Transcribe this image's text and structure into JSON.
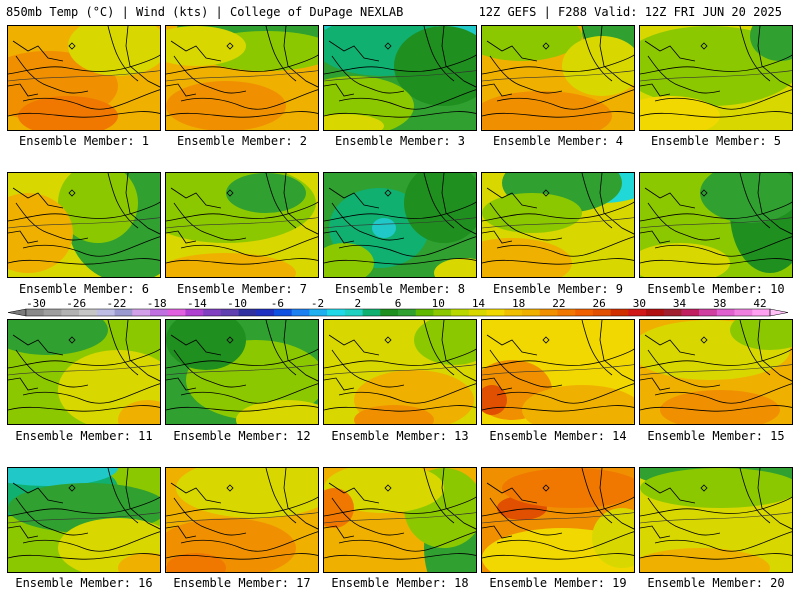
{
  "header": {
    "left": "850mb Temp (°C) | Wind (kts) | College of DuPage NEXLAB",
    "right": "12Z GEFS | F288 Valid: 12Z FRI JUN 20 2025"
  },
  "panels": [
    {
      "label": "Ensemble Member: 1",
      "bg": "#f0b000",
      "blobs": [
        [
          "#f09000",
          40,
          60,
          70,
          35
        ],
        [
          "#d8d800",
          110,
          20,
          50,
          30
        ],
        [
          "#f07800",
          60,
          90,
          50,
          20
        ]
      ]
    },
    {
      "label": "Ensemble Member: 2",
      "bg": "#f0b000",
      "blobs": [
        [
          "#30a030",
          90,
          5,
          80,
          25
        ],
        [
          "#8cc800",
          100,
          25,
          70,
          20
        ],
        [
          "#d8d800",
          30,
          20,
          50,
          20
        ],
        [
          "#f09000",
          60,
          80,
          60,
          25
        ]
      ]
    },
    {
      "label": "Ensemble Member: 3",
      "bg": "#30a030",
      "blobs": [
        [
          "#20c8c8",
          80,
          0,
          80,
          30
        ],
        [
          "#10b070",
          60,
          20,
          70,
          30
        ],
        [
          "#1f8f1f",
          120,
          40,
          50,
          40
        ],
        [
          "#8cc800",
          30,
          80,
          60,
          30
        ],
        [
          "#d8d800",
          20,
          100,
          40,
          12
        ]
      ]
    },
    {
      "label": "Ensemble Member: 4",
      "bg": "#f0b000",
      "blobs": [
        [
          "#30a030",
          140,
          5,
          40,
          30
        ],
        [
          "#8cc800",
          40,
          10,
          60,
          25
        ],
        [
          "#f09000",
          60,
          90,
          70,
          25
        ],
        [
          "#d8d800",
          120,
          40,
          40,
          30
        ]
      ]
    },
    {
      "label": "Ensemble Member: 5",
      "bg": "#d8d800",
      "blobs": [
        [
          "#8cc800",
          70,
          40,
          90,
          40
        ],
        [
          "#30a030",
          140,
          10,
          30,
          25
        ],
        [
          "#f0d800",
          30,
          90,
          50,
          20
        ]
      ]
    },
    {
      "label": "Ensemble Member: 6",
      "bg": "#d8d800",
      "blobs": [
        [
          "#30a030",
          120,
          50,
          60,
          60
        ],
        [
          "#8cc800",
          90,
          30,
          40,
          40
        ],
        [
          "#f0b000",
          20,
          60,
          45,
          40
        ]
      ]
    },
    {
      "label": "Ensemble Member: 7",
      "bg": "#d8d800",
      "blobs": [
        [
          "#8cc800",
          60,
          30,
          90,
          40
        ],
        [
          "#30a030",
          100,
          20,
          40,
          20
        ],
        [
          "#f0b000",
          60,
          100,
          70,
          20
        ]
      ]
    },
    {
      "label": "Ensemble Member: 8",
      "bg": "#30a030",
      "blobs": [
        [
          "#10b070",
          55,
          55,
          50,
          40
        ],
        [
          "#20c8c8",
          60,
          55,
          12,
          10
        ],
        [
          "#1f8f1f",
          120,
          30,
          40,
          40
        ],
        [
          "#8cc800",
          20,
          90,
          30,
          20
        ],
        [
          "#d8d800",
          140,
          100,
          30,
          15
        ]
      ]
    },
    {
      "label": "Ensemble Member: 9",
      "bg": "#d8d800",
      "blobs": [
        [
          "#20d8d8",
          120,
          10,
          50,
          20
        ],
        [
          "#30a030",
          80,
          10,
          60,
          30
        ],
        [
          "#8cc800",
          50,
          40,
          50,
          20
        ],
        [
          "#f0b000",
          30,
          90,
          60,
          25
        ]
      ]
    },
    {
      "label": "Ensemble Member: 10",
      "bg": "#8cc800",
      "blobs": [
        [
          "#1f8f1f",
          130,
          40,
          40,
          60
        ],
        [
          "#30a030",
          110,
          20,
          50,
          30
        ],
        [
          "#d8d800",
          40,
          90,
          50,
          20
        ]
      ]
    },
    {
      "label": "Ensemble Member: 11",
      "bg": "#8cc800",
      "blobs": [
        [
          "#30a030",
          40,
          10,
          60,
          25
        ],
        [
          "#d8d800",
          110,
          70,
          60,
          40
        ],
        [
          "#f0b000",
          140,
          100,
          30,
          20
        ]
      ]
    },
    {
      "label": "Ensemble Member: 12",
      "bg": "#30a030",
      "blobs": [
        [
          "#8cc800",
          90,
          60,
          70,
          40
        ],
        [
          "#d8d800",
          120,
          100,
          50,
          20
        ],
        [
          "#1f8f1f",
          40,
          20,
          40,
          30
        ]
      ]
    },
    {
      "label": "Ensemble Member: 13",
      "bg": "#d8d800",
      "blobs": [
        [
          "#f0b000",
          90,
          80,
          60,
          30
        ],
        [
          "#8cc800",
          130,
          20,
          40,
          25
        ],
        [
          "#f09000",
          70,
          100,
          40,
          15
        ]
      ]
    },
    {
      "label": "Ensemble Member: 14",
      "bg": "#f0d800",
      "blobs": [
        [
          "#f09000",
          30,
          70,
          40,
          30
        ],
        [
          "#e05000",
          10,
          80,
          15,
          15
        ],
        [
          "#f0b000",
          100,
          90,
          60,
          25
        ]
      ]
    },
    {
      "label": "Ensemble Member: 15",
      "bg": "#f0b000",
      "blobs": [
        [
          "#d8d800",
          70,
          30,
          80,
          30
        ],
        [
          "#8cc800",
          130,
          10,
          40,
          20
        ],
        [
          "#f09000",
          80,
          90,
          60,
          20
        ]
      ]
    },
    {
      "label": "Ensemble Member: 16",
      "bg": "#8cc800",
      "blobs": [
        [
          "#10b070",
          30,
          20,
          80,
          30
        ],
        [
          "#20c8c8",
          40,
          0,
          70,
          18
        ],
        [
          "#30a030",
          80,
          40,
          80,
          25
        ],
        [
          "#d8d800",
          110,
          80,
          60,
          30
        ],
        [
          "#f0b000",
          140,
          100,
          30,
          15
        ]
      ]
    },
    {
      "label": "Ensemble Member: 17",
      "bg": "#f0b000",
      "blobs": [
        [
          "#d8d800",
          90,
          20,
          80,
          30
        ],
        [
          "#f09000",
          60,
          80,
          70,
          30
        ],
        [
          "#f07800",
          30,
          100,
          30,
          15
        ]
      ]
    },
    {
      "label": "Ensemble Member: 18",
      "bg": "#f0b000",
      "blobs": [
        [
          "#30a030",
          140,
          80,
          40,
          60
        ],
        [
          "#8cc800",
          120,
          40,
          40,
          40
        ],
        [
          "#d8d800",
          60,
          20,
          60,
          25
        ],
        [
          "#f07800",
          10,
          40,
          20,
          20
        ]
      ]
    },
    {
      "label": "Ensemble Member: 19",
      "bg": "#f09000",
      "blobs": [
        [
          "#f0d800",
          80,
          90,
          80,
          30
        ],
        [
          "#e05000",
          40,
          40,
          25,
          12
        ],
        [
          "#f07800",
          90,
          20,
          70,
          20
        ],
        [
          "#d8d800",
          140,
          70,
          30,
          30
        ]
      ]
    },
    {
      "label": "Ensemble Member: 20",
      "bg": "#d8d800",
      "blobs": [
        [
          "#30a030",
          80,
          0,
          90,
          22
        ],
        [
          "#8cc800",
          80,
          20,
          80,
          20
        ],
        [
          "#f0b000",
          60,
          100,
          70,
          20
        ]
      ]
    }
  ],
  "colorbar": {
    "ticks": [
      "-30",
      "-26",
      "-22",
      "-18",
      "-14",
      "-10",
      "-6",
      "-2",
      "2",
      "6",
      "10",
      "14",
      "18",
      "22",
      "26",
      "30",
      "34",
      "38",
      "42"
    ],
    "colors": [
      "#8a8a8a",
      "#9e9e9e",
      "#b2b2b2",
      "#c6c6c6",
      "#bdbde6",
      "#9a9ad0",
      "#d2a0e8",
      "#c070e0",
      "#e060e0",
      "#b040d0",
      "#8040c0",
      "#6040b0",
      "#3030a0",
      "#2030c0",
      "#1050e0",
      "#1c80f0",
      "#20b0f0",
      "#20d8e8",
      "#20d0c0",
      "#10b070",
      "#1f8f1f",
      "#30a030",
      "#60b800",
      "#8cc800",
      "#b8d800",
      "#d8d800",
      "#f0d800",
      "#f0c000",
      "#f0b000",
      "#f09000",
      "#f07800",
      "#f06000",
      "#e05000",
      "#d03000",
      "#d01818",
      "#b01010",
      "#a02030",
      "#c02060",
      "#d040a0",
      "#e060d0",
      "#f080e0",
      "#ffa0f0"
    ]
  }
}
